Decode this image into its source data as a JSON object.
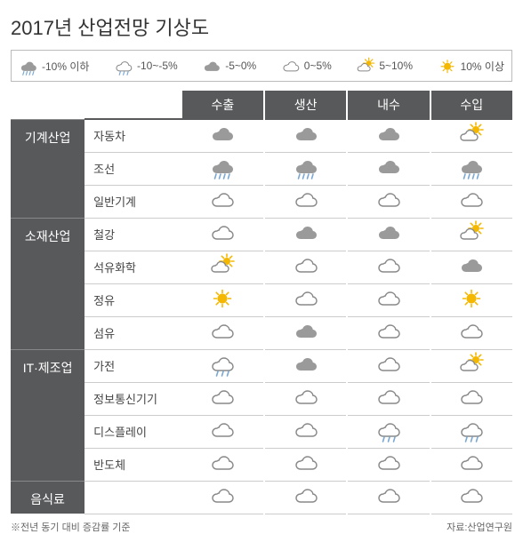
{
  "title": "2017년 산업전망 기상도",
  "legend": [
    {
      "icon": "rain-heavy",
      "label": "-10% 이하"
    },
    {
      "icon": "rain-light",
      "label": "-10~-5%"
    },
    {
      "icon": "cloud-dark",
      "label": "-5~0%"
    },
    {
      "icon": "cloud-light",
      "label": "0~5%"
    },
    {
      "icon": "partly-sunny",
      "label": "5~10%"
    },
    {
      "icon": "sunny",
      "label": "10% 이상"
    }
  ],
  "columns": [
    "수출",
    "생산",
    "내수",
    "수입"
  ],
  "groups": [
    {
      "name": "기계산업",
      "rows": [
        {
          "name": "자동차",
          "cells": [
            "cloud-dark",
            "cloud-dark",
            "cloud-dark",
            "partly-sunny"
          ]
        },
        {
          "name": "조선",
          "cells": [
            "rain-heavy",
            "rain-heavy",
            "cloud-dark",
            "rain-heavy"
          ]
        },
        {
          "name": "일반기계",
          "cells": [
            "cloud-light",
            "cloud-light",
            "cloud-light",
            "cloud-light"
          ]
        }
      ]
    },
    {
      "name": "소재산업",
      "rows": [
        {
          "name": "철강",
          "cells": [
            "cloud-light",
            "cloud-dark",
            "cloud-dark",
            "partly-sunny"
          ]
        },
        {
          "name": "석유화학",
          "cells": [
            "partly-sunny",
            "cloud-light",
            "cloud-light",
            "cloud-dark"
          ]
        },
        {
          "name": "정유",
          "cells": [
            "sunny",
            "cloud-light",
            "cloud-light",
            "sunny"
          ]
        },
        {
          "name": "섬유",
          "cells": [
            "cloud-light",
            "cloud-dark",
            "cloud-light",
            "cloud-light"
          ]
        }
      ]
    },
    {
      "name": "IT·제조업",
      "rows": [
        {
          "name": "가전",
          "cells": [
            "rain-light",
            "cloud-dark",
            "cloud-light",
            "partly-sunny"
          ]
        },
        {
          "name": "정보통신기기",
          "cells": [
            "cloud-light",
            "cloud-light",
            "cloud-light",
            "cloud-light"
          ]
        },
        {
          "name": "디스플레이",
          "cells": [
            "cloud-light",
            "cloud-light",
            "rain-light",
            "rain-light"
          ]
        },
        {
          "name": "반도체",
          "cells": [
            "cloud-light",
            "cloud-light",
            "cloud-light",
            "cloud-light"
          ]
        }
      ]
    },
    {
      "name": "음식료",
      "rows": [
        {
          "name": "",
          "cells": [
            "cloud-light",
            "cloud-light",
            "cloud-light",
            "cloud-light"
          ]
        }
      ]
    }
  ],
  "footnote_left": "※전년 동기 대비 증감률 기준",
  "footnote_right": "자료:산업연구원",
  "icons": {
    "colors": {
      "cloud_dark": "#9a9a9a",
      "cloud_light_stroke": "#888",
      "rain": "#7aa8d4",
      "sun": "#f5b800"
    }
  }
}
